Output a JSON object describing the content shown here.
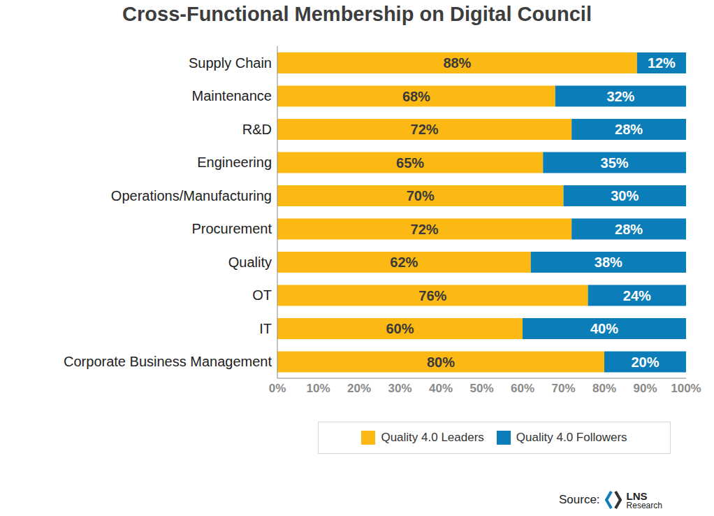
{
  "chart_data": {
    "type": "bar",
    "title": "Cross-Functional Membership on Digital Council",
    "orientation": "horizontal",
    "stacked": true,
    "data_labels": true,
    "grid": false,
    "legend": "bottom",
    "categories": [
      "Supply Chain",
      "Maintenance",
      "R&D",
      "Engineering",
      "Operations/Manufacturing",
      "Procurement",
      "Quality",
      "OT",
      "IT",
      "Corporate Business Management"
    ],
    "series": [
      {
        "name": "Quality 4.0 Leaders",
        "color": "#FDB913",
        "values": [
          88,
          68,
          72,
          65,
          70,
          72,
          62,
          76,
          60,
          80
        ],
        "value_labels": [
          "88%",
          "68%",
          "72%",
          "65%",
          "70%",
          "72%",
          "62%",
          "76%",
          "60%",
          "80%"
        ]
      },
      {
        "name": "Quality 4.0 Followers",
        "color": "#0B7DB8",
        "values": [
          12,
          32,
          28,
          35,
          30,
          28,
          38,
          24,
          40,
          20
        ],
        "value_labels": [
          "12%",
          "32%",
          "28%",
          "35%",
          "30%",
          "28%",
          "38%",
          "24%",
          "40%",
          "20%"
        ]
      }
    ],
    "xlim": [
      0,
      100
    ],
    "xticks": [
      {
        "value": 0,
        "label": "0%"
      },
      {
        "value": 10,
        "label": "10%"
      },
      {
        "value": 20,
        "label": "20%"
      },
      {
        "value": 30,
        "label": "30%"
      },
      {
        "value": 40,
        "label": "40%"
      },
      {
        "value": 50,
        "label": "50%"
      },
      {
        "value": 60,
        "label": "60%"
      },
      {
        "value": 70,
        "label": "70%"
      },
      {
        "value": 80,
        "label": "80%"
      },
      {
        "value": 90,
        "label": "90%"
      },
      {
        "value": 100,
        "label": "100%"
      }
    ],
    "source": {
      "prefix": "Source:",
      "logo": "LNS",
      "logo_sub": "Research"
    }
  }
}
